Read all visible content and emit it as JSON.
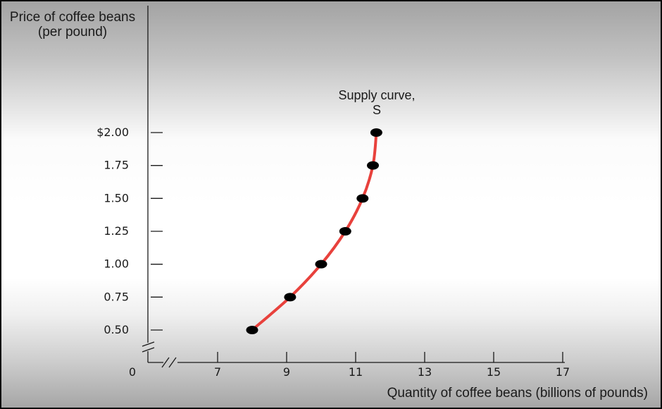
{
  "chart_data": {
    "type": "line",
    "title": "",
    "ylabel": "Price of coffee beans (per pound)",
    "xlabel": "Quantity of coffee beans (billions of pounds)",
    "y_tick_labels": [
      "$2.00",
      "1.75",
      "1.50",
      "1.25",
      "1.00",
      "0.75",
      "0.50"
    ],
    "y_tick_values": [
      2.0,
      1.75,
      1.5,
      1.25,
      1.0,
      0.75,
      0.5
    ],
    "x_tick_labels": [
      "7",
      "9",
      "11",
      "13",
      "15",
      "17"
    ],
    "x_tick_values": [
      7,
      9,
      11,
      13,
      15,
      17
    ],
    "origin_label": "0",
    "xlim": [
      7,
      17
    ],
    "ylim": [
      0.5,
      2.0
    ],
    "axis_breaks": true,
    "series": [
      {
        "name": "Supply curve, S",
        "color": "#e8413c",
        "points": [
          {
            "x": 8.0,
            "y": 0.5
          },
          {
            "x": 9.1,
            "y": 0.75
          },
          {
            "x": 10.0,
            "y": 1.0
          },
          {
            "x": 10.7,
            "y": 1.25
          },
          {
            "x": 11.2,
            "y": 1.5
          },
          {
            "x": 11.5,
            "y": 1.75
          },
          {
            "x": 11.6,
            "y": 2.0
          }
        ]
      }
    ],
    "annotation": "Supply curve, S"
  }
}
